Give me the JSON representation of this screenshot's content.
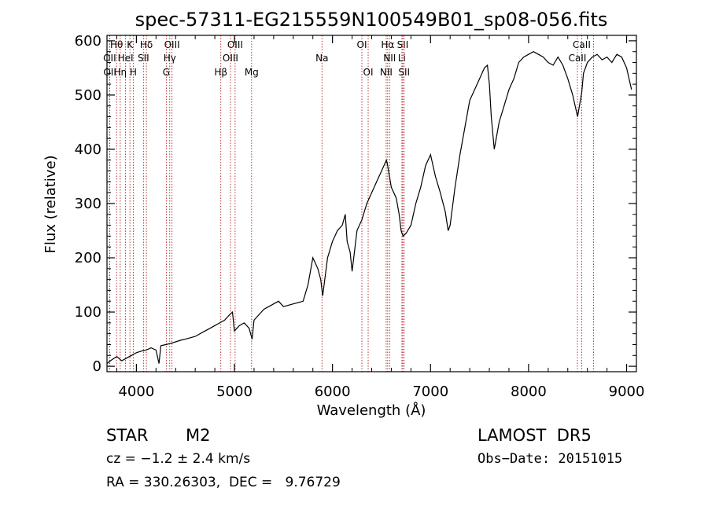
{
  "chart_data": {
    "type": "line",
    "title": "spec-57311-EG215559N100549B01_sp08-056.fits",
    "xlabel": "Wavelength (Å)",
    "ylabel": "Flux (relative)",
    "xlim": [
      3700,
      9100
    ],
    "ylim": [
      -10,
      610
    ],
    "x_ticks": [
      4000,
      5000,
      6000,
      7000,
      8000,
      9000
    ],
    "y_ticks": [
      0,
      100,
      200,
      300,
      400,
      500,
      600
    ],
    "grid": false,
    "series": [
      {
        "x": [
          3700,
          3750,
          3800,
          3850,
          3900,
          3950,
          4000,
          4050,
          4100,
          4150,
          4200,
          4230,
          4250,
          4300,
          4350,
          4400,
          4450,
          4500,
          4600,
          4700,
          4750,
          4800,
          4850,
          4900,
          4950,
          4980,
          5000,
          5050,
          5100,
          5150,
          5180,
          5200,
          5250,
          5300,
          5350,
          5400,
          5450,
          5500,
          5600,
          5700,
          5750,
          5800,
          5850,
          5880,
          5900,
          5950,
          6000,
          6050,
          6100,
          6130,
          6150,
          6180,
          6200,
          6250,
          6300,
          6350,
          6400,
          6450,
          6500,
          6550,
          6563,
          6600,
          6650,
          6680,
          6700,
          6720,
          6750,
          6800,
          6850,
          6900,
          6950,
          7000,
          7050,
          7100,
          7150,
          7180,
          7200,
          7250,
          7300,
          7350,
          7400,
          7450,
          7500,
          7550,
          7580,
          7600,
          7620,
          7650,
          7700,
          7750,
          7800,
          7850,
          7900,
          7950,
          8000,
          8050,
          8100,
          8150,
          8200,
          8250,
          8300,
          8350,
          8400,
          8450,
          8500,
          8542,
          8560,
          8600,
          8650,
          8700,
          8750,
          8800,
          8850,
          8900,
          8950,
          9000,
          9050
        ],
        "y": [
          5,
          12,
          18,
          10,
          15,
          20,
          25,
          28,
          30,
          34,
          30,
          5,
          38,
          40,
          42,
          45,
          48,
          50,
          55,
          65,
          70,
          75,
          80,
          85,
          95,
          100,
          65,
          75,
          80,
          70,
          50,
          85,
          95,
          105,
          110,
          115,
          120,
          110,
          115,
          120,
          150,
          200,
          180,
          160,
          130,
          200,
          230,
          250,
          260,
          280,
          230,
          210,
          175,
          250,
          270,
          300,
          320,
          340,
          360,
          380,
          370,
          330,
          310,
          280,
          250,
          240,
          245,
          260,
          300,
          330,
          370,
          390,
          350,
          320,
          285,
          250,
          260,
          330,
          390,
          440,
          490,
          510,
          530,
          550,
          555,
          520,
          460,
          400,
          450,
          480,
          510,
          530,
          560,
          570,
          575,
          580,
          575,
          570,
          560,
          555,
          570,
          555,
          530,
          500,
          460,
          505,
          540,
          560,
          570,
          575,
          565,
          570,
          560,
          575,
          570,
          550,
          510
        ]
      }
    ],
    "spectral_lines": [
      {
        "label": "Hθ",
        "x": 3798
      },
      {
        "label": "K",
        "x": 3934
      },
      {
        "label": "Hδ",
        "x": 4102
      },
      {
        "label": "OIII",
        "x": 4363
      },
      {
        "label": "OIII",
        "x": 5007
      },
      {
        "label": "OI",
        "x": 6300
      },
      {
        "label": "Hα",
        "x": 6563
      },
      {
        "label": "SII",
        "x": 6717
      },
      {
        "label": "CaII",
        "x": 8542
      },
      {
        "label": "OII",
        "x": 3727
      },
      {
        "label": "HeI",
        "x": 3889
      },
      {
        "label": "SII",
        "x": 4072
      },
      {
        "label": "Hγ",
        "x": 4340
      },
      {
        "label": "OIII",
        "x": 4959
      },
      {
        "label": "Na",
        "x": 5893
      },
      {
        "label": "NII",
        "x": 6583
      },
      {
        "label": "Li",
        "x": 6708
      },
      {
        "label": "CaII",
        "x": 8498
      },
      {
        "label": "OII",
        "x": 3729
      },
      {
        "label": "Hη",
        "x": 3835
      },
      {
        "label": "H",
        "x": 3968
      },
      {
        "label": "G",
        "x": 4305
      },
      {
        "label": "Hβ",
        "x": 4861
      },
      {
        "label": "Mg",
        "x": 5175
      },
      {
        "label": "OI",
        "x": 6364
      },
      {
        "label": "NII",
        "x": 6548
      },
      {
        "label": "SII",
        "x": 6731
      },
      {
        "label": "CaII",
        "x": 8662
      }
    ]
  },
  "info": {
    "object_class": "STAR",
    "subclass": "M2",
    "survey": "LAMOST  DR5",
    "cz": "cz = −1.2 ± 2.4 km/s",
    "obs_date": "Obs−Date: 20151015",
    "coords": "RA = 330.26303,  DEC =   9.76729"
  }
}
